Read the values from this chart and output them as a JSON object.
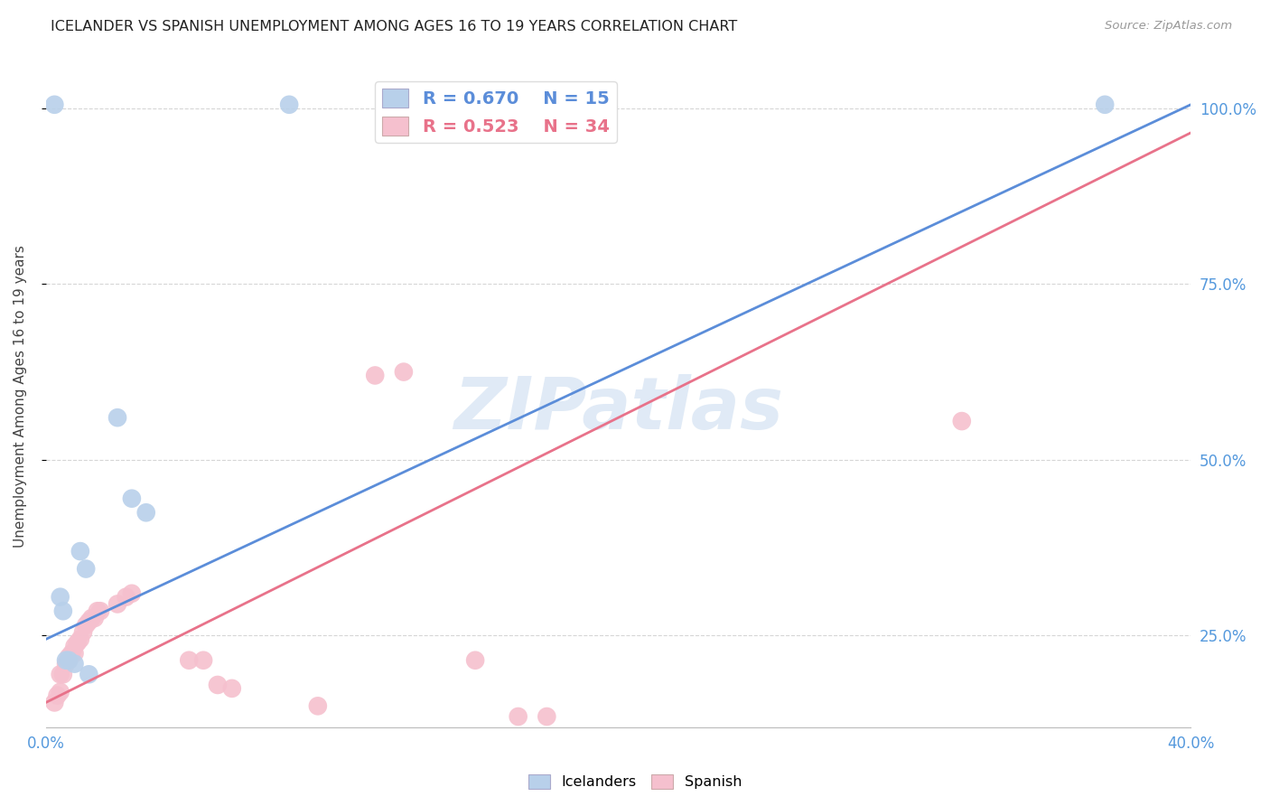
{
  "title": "ICELANDER VS SPANISH UNEMPLOYMENT AMONG AGES 16 TO 19 YEARS CORRELATION CHART",
  "source": "Source: ZipAtlas.com",
  "xlabel": "",
  "ylabel": "Unemployment Among Ages 16 to 19 years",
  "xmin": 0.0,
  "xmax": 0.4,
  "ymin": 0.12,
  "ymax": 1.06,
  "iceland_R": 0.67,
  "iceland_N": 15,
  "spanish_R": 0.523,
  "spanish_N": 34,
  "iceland_color": "#b8d0ea",
  "spanish_color": "#f5c0ce",
  "iceland_line_color": "#5b8dd9",
  "spanish_line_color": "#e8728a",
  "iceland_line": [
    0.0,
    0.245,
    0.4,
    1.005
  ],
  "spanish_line": [
    0.0,
    0.155,
    0.4,
    0.965
  ],
  "iceland_dots": [
    [
      0.003,
      1.005
    ],
    [
      0.085,
      1.005
    ],
    [
      0.125,
      1.005
    ],
    [
      0.37,
      1.005
    ],
    [
      0.025,
      0.56
    ],
    [
      0.03,
      0.445
    ],
    [
      0.035,
      0.425
    ],
    [
      0.012,
      0.37
    ],
    [
      0.014,
      0.345
    ],
    [
      0.005,
      0.305
    ],
    [
      0.006,
      0.285
    ],
    [
      0.007,
      0.215
    ],
    [
      0.008,
      0.215
    ],
    [
      0.01,
      0.21
    ],
    [
      0.015,
      0.195
    ]
  ],
  "spanish_dots": [
    [
      0.003,
      0.155
    ],
    [
      0.004,
      0.165
    ],
    [
      0.005,
      0.17
    ],
    [
      0.005,
      0.195
    ],
    [
      0.006,
      0.195
    ],
    [
      0.007,
      0.21
    ],
    [
      0.008,
      0.215
    ],
    [
      0.008,
      0.22
    ],
    [
      0.009,
      0.225
    ],
    [
      0.01,
      0.225
    ],
    [
      0.01,
      0.235
    ],
    [
      0.011,
      0.24
    ],
    [
      0.012,
      0.245
    ],
    [
      0.013,
      0.255
    ],
    [
      0.014,
      0.265
    ],
    [
      0.015,
      0.27
    ],
    [
      0.016,
      0.275
    ],
    [
      0.017,
      0.275
    ],
    [
      0.018,
      0.285
    ],
    [
      0.019,
      0.285
    ],
    [
      0.025,
      0.295
    ],
    [
      0.028,
      0.305
    ],
    [
      0.03,
      0.31
    ],
    [
      0.05,
      0.215
    ],
    [
      0.055,
      0.215
    ],
    [
      0.06,
      0.18
    ],
    [
      0.065,
      0.175
    ],
    [
      0.095,
      0.15
    ],
    [
      0.115,
      0.62
    ],
    [
      0.125,
      0.625
    ],
    [
      0.15,
      0.215
    ],
    [
      0.165,
      0.135
    ],
    [
      0.175,
      0.135
    ],
    [
      0.32,
      0.555
    ]
  ],
  "yticks": [
    0.25,
    0.5,
    0.75,
    1.0
  ],
  "ytick_labels": [
    "25.0%",
    "50.0%",
    "75.0%",
    "100.0%"
  ],
  "xticks": [
    0.0,
    0.05,
    0.1,
    0.15,
    0.2,
    0.25,
    0.3,
    0.35,
    0.4
  ],
  "xtick_labels": [
    "0.0%",
    "",
    "",
    "",
    "",
    "",
    "",
    "",
    "40.0%"
  ]
}
